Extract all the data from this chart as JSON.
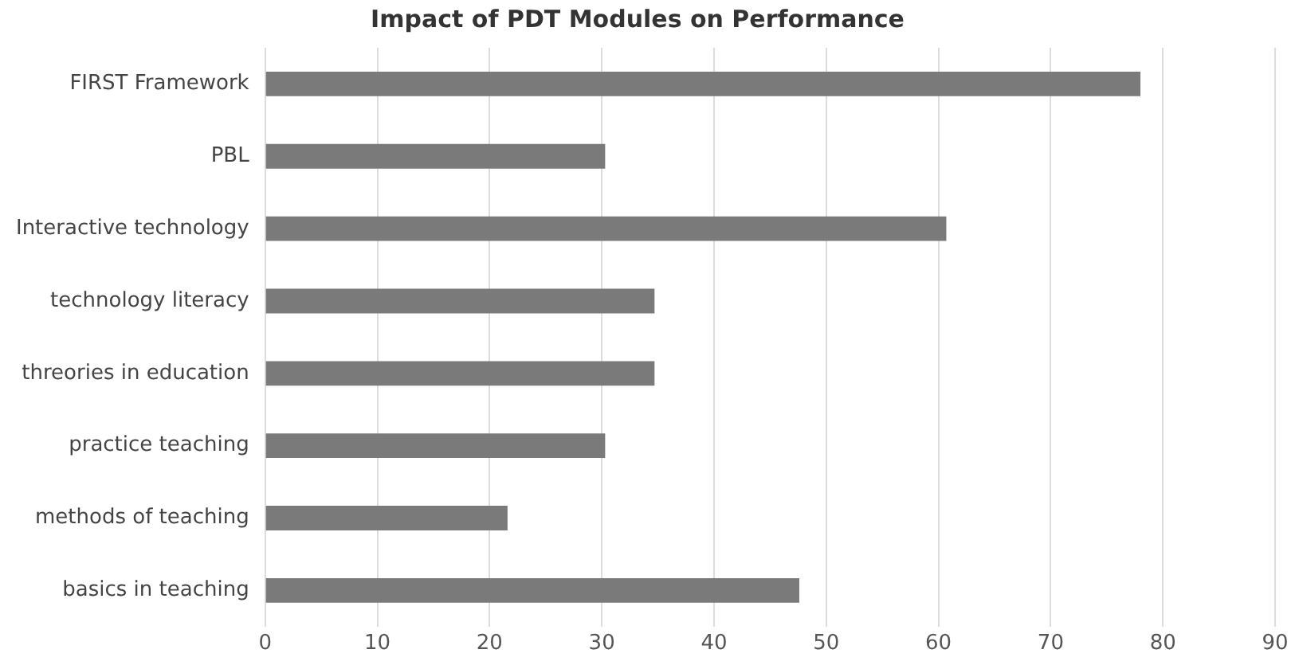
{
  "chart_data": {
    "type": "bar",
    "orientation": "horizontal",
    "title": "Impact of PDT Modules on Performance",
    "categories": [
      "FIRST Framework",
      "PBL",
      "Interactive technology",
      "technology literacy",
      "threories in education",
      "practice teaching",
      "methods of teaching",
      "basics in teaching"
    ],
    "values": [
      78,
      30.3,
      60.7,
      34.7,
      34.7,
      30.3,
      21.6,
      47.6
    ],
    "color": "#7a7a7a",
    "xlim": [
      0,
      90
    ],
    "xticks": [
      0,
      10,
      20,
      30,
      40,
      50,
      60,
      70,
      80,
      90
    ],
    "grid": "x",
    "legend": false
  }
}
